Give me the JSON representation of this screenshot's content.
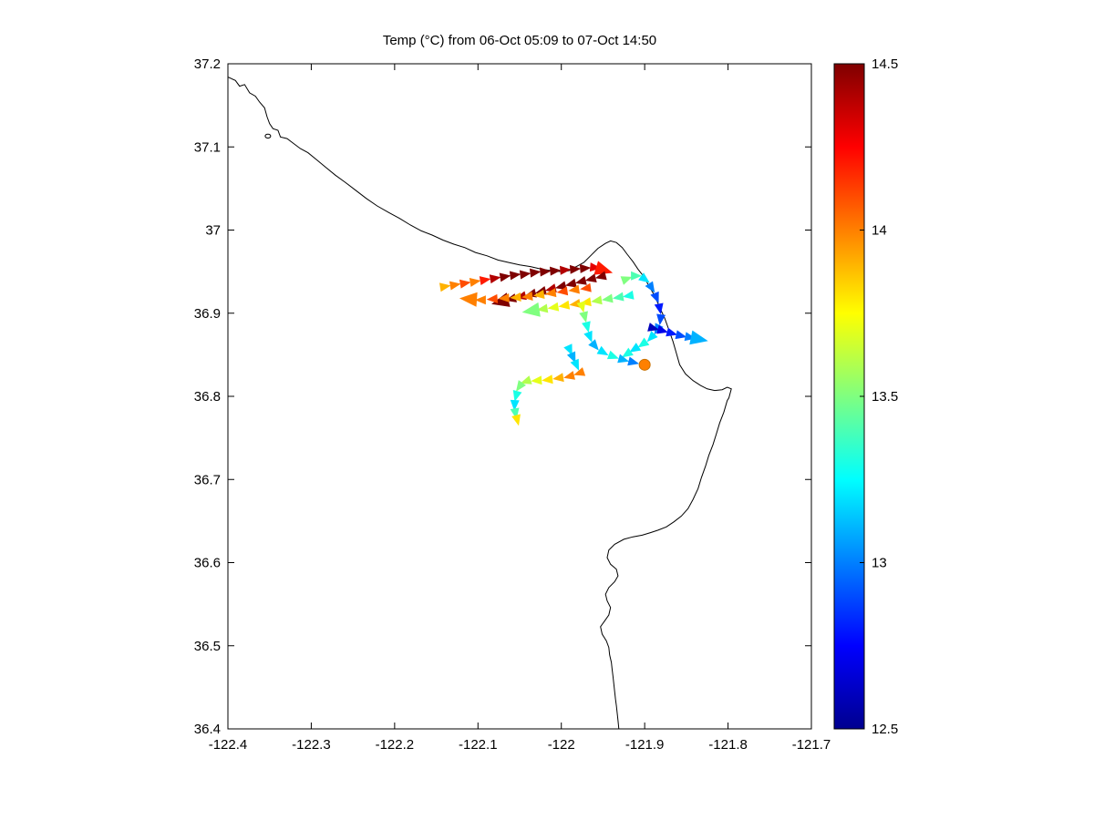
{
  "figure": {
    "background": "#ffffff"
  },
  "chart_data": {
    "type": "scatter",
    "title": "Temp (°C) from 06-Oct 05:09 to 07-Oct 14:50",
    "xlabel": "",
    "ylabel": "",
    "xlim": [
      -122.4,
      -121.7
    ],
    "ylim": [
      36.4,
      37.2
    ],
    "grid": false,
    "x_ticks": {
      "values": [
        -122.4,
        -122.3,
        -122.2,
        -122.1,
        -122.0,
        -121.9,
        -121.8,
        -121.7
      ],
      "labels": [
        "-122.4",
        "-122.3",
        "-122.2",
        "-122.1",
        "-122",
        "-121.9",
        "-121.8",
        "-121.7"
      ]
    },
    "y_ticks": {
      "values": [
        36.4,
        36.5,
        36.6,
        36.7,
        36.8,
        36.9,
        37.0,
        37.1,
        37.2
      ],
      "labels": [
        "36.4",
        "36.5",
        "36.6",
        "36.7",
        "36.8",
        "36.9",
        "37",
        "37.1",
        "37.2"
      ]
    },
    "colorbar": {
      "colormap": "jet",
      "position": "right",
      "min": 12.5,
      "max": 14.5,
      "tick_values": [
        12.5,
        13.0,
        13.5,
        14.0,
        14.5
      ],
      "tick_labels": [
        "12.5",
        "13",
        "13.5",
        "14",
        "14.5"
      ]
    },
    "colors": {
      "coastline": "#000000",
      "axis": "#000000",
      "text": "#000000",
      "background": "#ffffff"
    },
    "coastline": [
      [
        -122.4,
        37.184
      ],
      [
        -122.391,
        37.18
      ],
      [
        -122.386,
        37.173
      ],
      [
        -122.38,
        37.175
      ],
      [
        -122.374,
        37.165
      ],
      [
        -122.367,
        37.161
      ],
      [
        -122.362,
        37.154
      ],
      [
        -122.356,
        37.147
      ],
      [
        -122.353,
        37.136
      ],
      [
        -122.35,
        37.128
      ],
      [
        -122.346,
        37.122
      ],
      [
        -122.34,
        37.12
      ],
      [
        -122.337,
        37.112
      ],
      [
        -122.329,
        37.11
      ],
      [
        -122.321,
        37.104
      ],
      [
        -122.313,
        37.098
      ],
      [
        -122.304,
        37.093
      ],
      [
        -122.293,
        37.084
      ],
      [
        -122.282,
        37.075
      ],
      [
        -122.271,
        37.066
      ],
      [
        -122.26,
        37.058
      ],
      [
        -122.247,
        37.048
      ],
      [
        -122.234,
        37.038
      ],
      [
        -122.221,
        37.029
      ],
      [
        -122.207,
        37.021
      ],
      [
        -122.194,
        37.014
      ],
      [
        -122.181,
        37.006
      ],
      [
        -122.168,
        36.999
      ],
      [
        -122.155,
        36.994
      ],
      [
        -122.142,
        36.988
      ],
      [
        -122.129,
        36.983
      ],
      [
        -122.116,
        36.979
      ],
      [
        -122.103,
        36.973
      ],
      [
        -122.089,
        36.969
      ],
      [
        -122.076,
        36.964
      ],
      [
        -122.063,
        36.961
      ],
      [
        -122.05,
        36.958
      ],
      [
        -122.037,
        36.956
      ],
      [
        -122.024,
        36.953
      ],
      [
        -122.011,
        36.951
      ],
      [
        -122.0,
        36.95
      ],
      [
        -121.991,
        36.951
      ],
      [
        -121.982,
        36.956
      ],
      [
        -121.973,
        36.961
      ],
      [
        -121.965,
        36.969
      ],
      [
        -121.956,
        36.978
      ],
      [
        -121.947,
        36.984
      ],
      [
        -121.941,
        36.987
      ],
      [
        -121.934,
        36.985
      ],
      [
        -121.927,
        36.979
      ],
      [
        -121.921,
        36.971
      ],
      [
        -121.914,
        36.962
      ],
      [
        -121.908,
        36.953
      ],
      [
        -121.901,
        36.944
      ],
      [
        -121.895,
        36.933
      ],
      [
        -121.888,
        36.921
      ],
      [
        -121.882,
        36.907
      ],
      [
        -121.876,
        36.894
      ],
      [
        -121.871,
        36.88
      ],
      [
        -121.866,
        36.866
      ],
      [
        -121.862,
        36.852
      ],
      [
        -121.858,
        36.838
      ],
      [
        -121.851,
        36.827
      ],
      [
        -121.842,
        36.819
      ],
      [
        -121.833,
        36.813
      ],
      [
        -121.825,
        36.809
      ],
      [
        -121.816,
        36.807
      ],
      [
        -121.807,
        36.808
      ],
      [
        -121.801,
        36.811
      ],
      [
        -121.796,
        36.809
      ],
      [
        -121.799,
        36.798
      ],
      [
        -121.801,
        36.795
      ],
      [
        -121.805,
        36.781
      ],
      [
        -121.81,
        36.768
      ],
      [
        -121.814,
        36.755
      ],
      [
        -121.818,
        36.742
      ],
      [
        -121.823,
        36.729
      ],
      [
        -121.827,
        36.716
      ],
      [
        -121.832,
        36.702
      ],
      [
        -121.836,
        36.689
      ],
      [
        -121.842,
        36.676
      ],
      [
        -121.848,
        36.665
      ],
      [
        -121.856,
        36.656
      ],
      [
        -121.865,
        36.649
      ],
      [
        -121.874,
        36.643
      ],
      [
        -121.884,
        36.639
      ],
      [
        -121.893,
        36.636
      ],
      [
        -121.903,
        36.633
      ],
      [
        -121.914,
        36.631
      ],
      [
        -121.925,
        36.628
      ],
      [
        -121.936,
        36.622
      ],
      [
        -121.943,
        36.615
      ],
      [
        -121.945,
        36.606
      ],
      [
        -121.941,
        36.598
      ],
      [
        -121.934,
        36.592
      ],
      [
        -121.932,
        36.584
      ],
      [
        -121.936,
        36.577
      ],
      [
        -121.943,
        36.57
      ],
      [
        -121.947,
        36.562
      ],
      [
        -121.945,
        36.554
      ],
      [
        -121.941,
        36.546
      ],
      [
        -121.943,
        36.537
      ],
      [
        -121.948,
        36.53
      ],
      [
        -121.953,
        36.523
      ],
      [
        -121.951,
        36.514
      ],
      [
        -121.946,
        36.506
      ],
      [
        -121.943,
        36.498
      ],
      [
        -121.942,
        36.489
      ],
      [
        -121.94,
        36.48
      ],
      [
        -121.939,
        36.471
      ],
      [
        -121.938,
        36.463
      ],
      [
        -121.937,
        36.454
      ],
      [
        -121.936,
        36.445
      ],
      [
        -121.935,
        36.436
      ],
      [
        -121.934,
        36.428
      ],
      [
        -121.933,
        36.419
      ],
      [
        -121.932,
        36.41
      ],
      [
        -121.931,
        36.4
      ]
    ],
    "islands": [
      [
        -122.352,
        37.113
      ]
    ],
    "track_segments": [
      {
        "name": "outbound-north",
        "arrow_end": true,
        "points": [
          [
            -122.14,
            36.932,
            13.9
          ],
          [
            -122.128,
            36.934,
            14.0
          ],
          [
            -122.116,
            36.936,
            14.1
          ],
          [
            -122.104,
            36.938,
            14.0
          ],
          [
            -122.092,
            36.94,
            14.2
          ],
          [
            -122.08,
            36.942,
            14.4
          ],
          [
            -122.068,
            36.944,
            14.5
          ],
          [
            -122.056,
            36.946,
            14.5
          ],
          [
            -122.044,
            36.947,
            14.5
          ],
          [
            -122.032,
            36.949,
            14.5
          ],
          [
            -122.02,
            36.95,
            14.5
          ],
          [
            -122.008,
            36.951,
            14.5
          ],
          [
            -121.996,
            36.952,
            14.4
          ],
          [
            -121.984,
            36.953,
            14.5
          ],
          [
            -121.972,
            36.954,
            14.5
          ],
          [
            -121.96,
            36.955,
            14.3
          ],
          [
            -121.95,
            36.952,
            14.2
          ]
        ]
      },
      {
        "name": "return-dark-red",
        "arrow_end": true,
        "points": [
          [
            -121.952,
            36.944,
            14.5
          ],
          [
            -121.964,
            36.941,
            14.5
          ],
          [
            -121.976,
            36.938,
            14.5
          ],
          [
            -121.988,
            36.935,
            14.5
          ],
          [
            -122.0,
            36.932,
            14.5
          ],
          [
            -122.012,
            36.929,
            14.4
          ],
          [
            -122.024,
            36.926,
            14.5
          ],
          [
            -122.036,
            36.923,
            14.5
          ],
          [
            -122.048,
            36.92,
            14.4
          ],
          [
            -122.06,
            36.917,
            14.5
          ],
          [
            -122.072,
            36.914,
            14.5
          ]
        ]
      },
      {
        "name": "return-orange",
        "arrow_end": true,
        "points": [
          [
            -121.97,
            36.93,
            14.1
          ],
          [
            -121.984,
            36.928,
            14.0
          ],
          [
            -121.998,
            36.926,
            14.1
          ],
          [
            -122.012,
            36.924,
            14.0
          ],
          [
            -122.026,
            36.922,
            13.9
          ],
          [
            -122.04,
            36.92,
            14.0
          ],
          [
            -122.054,
            36.919,
            13.9
          ],
          [
            -122.068,
            36.918,
            14.0
          ],
          [
            -122.082,
            36.917,
            14.1
          ],
          [
            -122.096,
            36.916,
            14.0
          ],
          [
            -122.11,
            36.917,
            14.0
          ]
        ]
      },
      {
        "name": "mid-green-westward",
        "arrow_end": true,
        "points": [
          [
            -121.919,
            36.921,
            13.3
          ],
          [
            -121.931,
            36.919,
            13.4
          ],
          [
            -121.944,
            36.917,
            13.5
          ],
          [
            -121.957,
            36.915,
            13.6
          ],
          [
            -121.97,
            36.913,
            13.8
          ],
          [
            -121.983,
            36.911,
            13.9
          ],
          [
            -121.996,
            36.909,
            13.8
          ],
          [
            -122.009,
            36.907,
            13.7
          ],
          [
            -122.022,
            36.905,
            13.6
          ],
          [
            -122.035,
            36.903,
            13.5
          ]
        ]
      },
      {
        "name": "east-loop",
        "arrow_end": false,
        "points": [
          [
            -121.922,
            36.941,
            13.5
          ],
          [
            -121.911,
            36.945,
            13.4
          ],
          [
            -121.9,
            36.941,
            13.2
          ],
          [
            -121.892,
            36.931,
            13.0
          ],
          [
            -121.886,
            36.919,
            12.9
          ],
          [
            -121.882,
            36.906,
            12.8
          ],
          [
            -121.881,
            36.893,
            12.9
          ],
          [
            -121.885,
            36.881,
            13.0
          ],
          [
            -121.892,
            36.871,
            13.2
          ],
          [
            -121.902,
            36.863,
            13.3
          ],
          [
            -121.912,
            36.857,
            13.2
          ],
          [
            -121.921,
            36.851,
            13.3
          ]
        ]
      },
      {
        "name": "east-blue-eastward",
        "arrow_end": true,
        "points": [
          [
            -121.89,
            36.882,
            12.6
          ],
          [
            -121.879,
            36.879,
            12.7
          ],
          [
            -121.868,
            36.876,
            12.8
          ],
          [
            -121.857,
            36.873,
            12.9
          ],
          [
            -121.846,
            36.871,
            13.0
          ],
          [
            -121.836,
            36.869,
            13.1
          ]
        ]
      },
      {
        "name": "center-descent",
        "arrow_end": false,
        "points": [
          [
            -121.975,
            36.908,
            13.7
          ],
          [
            -121.972,
            36.896,
            13.5
          ],
          [
            -121.969,
            36.884,
            13.3
          ],
          [
            -121.966,
            36.872,
            13.2
          ],
          [
            -121.96,
            36.861,
            13.1
          ],
          [
            -121.95,
            36.853,
            13.2
          ],
          [
            -121.938,
            36.848,
            13.3
          ],
          [
            -121.926,
            36.844,
            13.1
          ],
          [
            -121.914,
            36.841,
            13.0
          ]
        ]
      },
      {
        "name": "southwest-excursion",
        "arrow_end": false,
        "points": [
          [
            -121.978,
            36.828,
            14.0
          ],
          [
            -121.99,
            36.824,
            14.0
          ],
          [
            -122.003,
            36.822,
            13.9
          ],
          [
            -122.016,
            36.82,
            13.8
          ],
          [
            -122.029,
            36.819,
            13.7
          ],
          [
            -122.042,
            36.818,
            13.6
          ],
          [
            -122.05,
            36.812,
            13.5
          ],
          [
            -122.054,
            36.801,
            13.3
          ],
          [
            -122.056,
            36.79,
            13.2
          ],
          [
            -122.055,
            36.78,
            13.4
          ],
          [
            -122.053,
            36.772,
            13.8
          ]
        ]
      },
      {
        "name": "small-cyan",
        "arrow_end": false,
        "points": [
          [
            -121.99,
            36.856,
            13.2
          ],
          [
            -121.986,
            36.847,
            13.1
          ],
          [
            -121.982,
            36.838,
            13.2
          ]
        ]
      }
    ],
    "current_position": {
      "lon": -121.9,
      "lat": 36.838,
      "temp": 14.0
    }
  }
}
